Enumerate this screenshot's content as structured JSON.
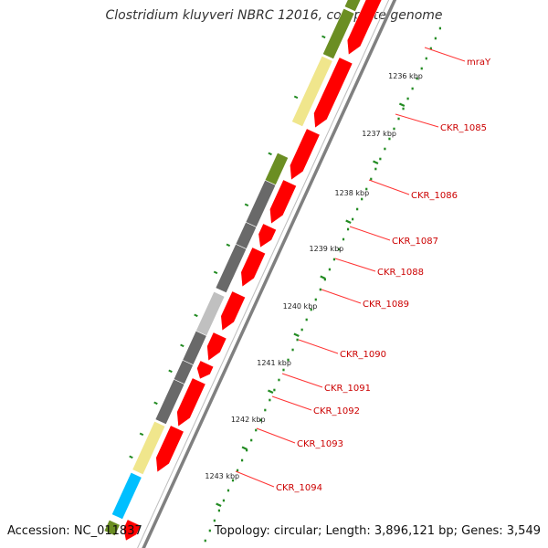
{
  "title": "Clostridium kluyveri NBRC 12016, complete genome",
  "footer": {
    "accession": "Accession: NC_011837",
    "summary": "Topology: circular; Length: 3,896,121 bp; Genes: 3,549"
  },
  "scale_ticks": [
    "1236 kbp",
    "1237 kbp",
    "1238 kbp",
    "1239 kbp",
    "1240 kbp",
    "1241 kbp",
    "1242 kbp",
    "1243 kbp"
  ],
  "gene_labels": [
    "mraY",
    "CKR_1085",
    "CKR_1086",
    "CKR_1087",
    "CKR_1088",
    "CKR_1089",
    "CKR_1090",
    "CKR_1091",
    "CKR_1092",
    "CKR_1093",
    "CKR_1094"
  ],
  "colors": {
    "cds": "#ff0000",
    "olive": "#6b8e23",
    "khaki": "#f0e68c",
    "dark_gray": "#696969",
    "light_gray": "#c0c0c0",
    "cyan": "#00bfff",
    "backbone": "#808080",
    "tick": "#228b22",
    "label": "#cc0000"
  }
}
